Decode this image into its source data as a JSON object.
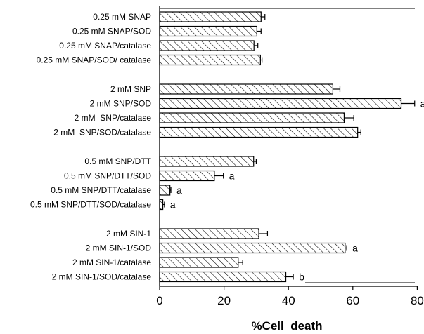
{
  "chart_data": {
    "type": "bar",
    "orientation": "horizontal",
    "xlabel": "%Cell  death",
    "xlim": [
      0,
      80
    ],
    "xticks": [
      0,
      20,
      40,
      60,
      80
    ],
    "grid": false,
    "groups": [
      {
        "bars": [
          {
            "label": "0.25 mM SNAP",
            "value": 31.5,
            "error": 1.2,
            "annotation": ""
          },
          {
            "label": "0.25 mM SNAP/SOD",
            "value": 30.2,
            "error": 1.3,
            "annotation": ""
          },
          {
            "label": "0.25 mM SNAP/catalase",
            "value": 29.3,
            "error": 1.2,
            "annotation": ""
          },
          {
            "label": "0.25 mM SNAP/SOD/ catalase",
            "value": 31.3,
            "error": 0.5,
            "annotation": ""
          }
        ]
      },
      {
        "bars": [
          {
            "label": "2 mM SNP",
            "value": 53.8,
            "error": 2.2,
            "annotation": ""
          },
          {
            "label": "2 mM SNP/SOD",
            "value": 75.0,
            "error": 4.2,
            "annotation": "a"
          },
          {
            "label": "2 mM  SNP/catalase",
            "value": 57.3,
            "error": 3.0,
            "annotation": ""
          },
          {
            "label": "2 mM  SNP/SOD/catalase",
            "value": 61.5,
            "error": 1.0,
            "annotation": ""
          }
        ]
      },
      {
        "bars": [
          {
            "label": "0.5 mM SNP/DTT",
            "value": 29.2,
            "error": 0.8,
            "annotation": ""
          },
          {
            "label": "0.5 mM SNP/DTT/SOD",
            "value": 17.0,
            "error": 2.8,
            "annotation": "a"
          },
          {
            "label": "0.5 mM SNP/DTT/catalase",
            "value": 3.2,
            "error": 0.3,
            "annotation": "a"
          },
          {
            "label": "0.5 mM SNP/DTT/SOD/catalase",
            "value": 1.0,
            "error": 0.5,
            "annotation": "a"
          }
        ]
      },
      {
        "bars": [
          {
            "label": "2 mM SIN-1",
            "value": 30.8,
            "error": 2.7,
            "annotation": ""
          },
          {
            "label": "2 mM SIN-1/SOD",
            "value": 57.6,
            "error": 0.5,
            "annotation": "a"
          },
          {
            "label": "2 mM SIN-1/catalase",
            "value": 24.4,
            "error": 1.4,
            "annotation": ""
          },
          {
            "label": "2 mM SIN-1/SOD/catalase",
            "value": 39.2,
            "error": 2.3,
            "annotation": "b"
          }
        ]
      }
    ]
  }
}
